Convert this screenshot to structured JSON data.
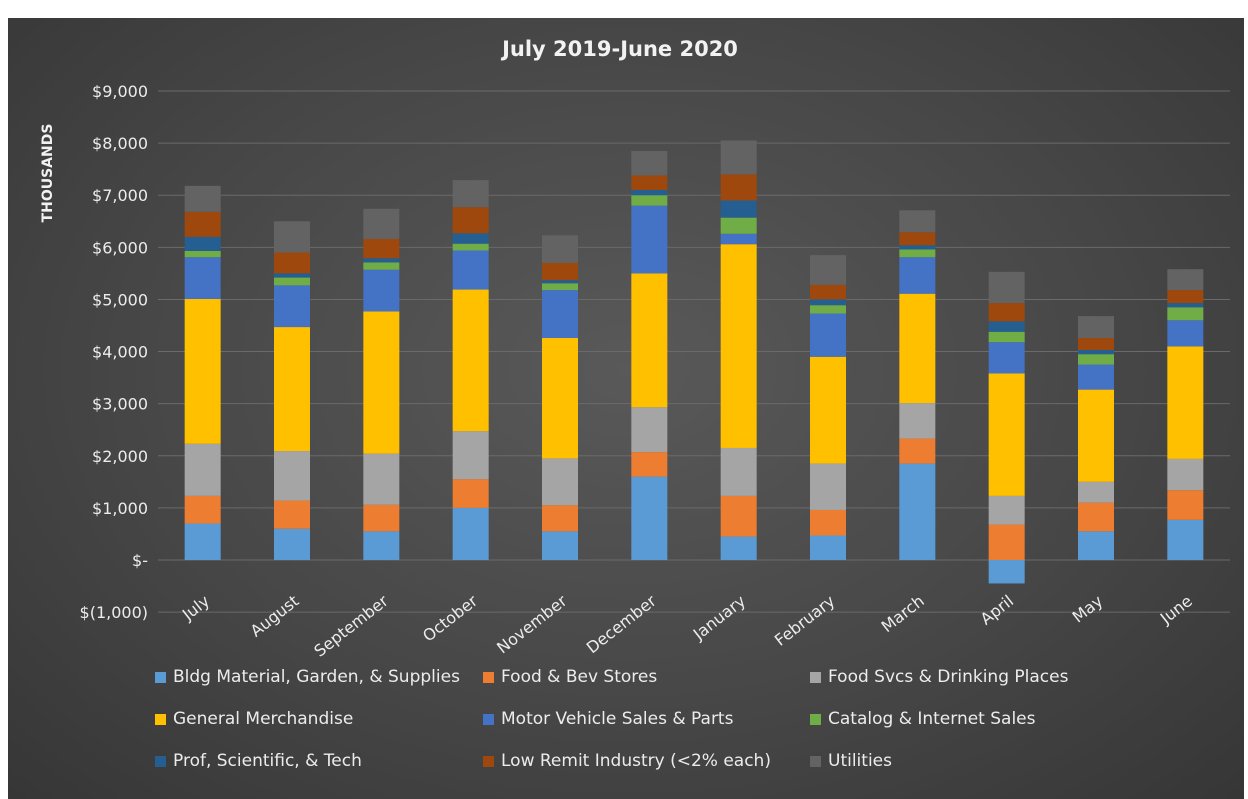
{
  "chart_data": {
    "type": "bar",
    "stacked": true,
    "title": "July 2019-June 2020",
    "ylabel": "THOUSANDS",
    "xlabel": "",
    "ylim": [
      -1000,
      9000
    ],
    "yticks": [
      -1000,
      0,
      1000,
      2000,
      3000,
      4000,
      5000,
      6000,
      7000,
      8000,
      9000
    ],
    "ytick_labels": [
      "$(1,000)",
      "$-",
      "$1,000",
      "$2,000",
      "$3,000",
      "$4,000",
      "$5,000",
      "$6,000",
      "$7,000",
      "$8,000",
      "$9,000"
    ],
    "grid": true,
    "legend_position": "bottom",
    "categories": [
      "July",
      "August",
      "September",
      "October",
      "November",
      "December",
      "January",
      "February",
      "March",
      "April",
      "May",
      "June"
    ],
    "series": [
      {
        "name": "Bldg Material, Garden, & Supplies",
        "color": "#5b9bd5",
        "values": [
          700,
          600,
          550,
          1000,
          550,
          1600,
          450,
          470,
          1850,
          -450,
          550,
          770
        ]
      },
      {
        "name": "Food & Bev Stores",
        "color": "#ed7d31",
        "values": [
          530,
          540,
          510,
          550,
          500,
          470,
          780,
          490,
          480,
          680,
          550,
          570
        ]
      },
      {
        "name": "Food Svcs & Drinking Places",
        "color": "#a5a5a5",
        "values": [
          1000,
          950,
          980,
          920,
          900,
          860,
          920,
          890,
          680,
          550,
          400,
          600
        ]
      },
      {
        "name": "General Merchandise",
        "color": "#ffc000",
        "values": [
          2780,
          2380,
          2730,
          2720,
          2310,
          2570,
          3910,
          2050,
          2100,
          2350,
          1770,
          2160
        ]
      },
      {
        "name": "Motor Vehicle Sales & Parts",
        "color": "#4472c4",
        "values": [
          800,
          800,
          800,
          750,
          920,
          1300,
          200,
          830,
          700,
          600,
          480,
          500
        ]
      },
      {
        "name": "Catalog & Internet Sales",
        "color": "#70ad47",
        "values": [
          120,
          150,
          140,
          130,
          130,
          200,
          310,
          160,
          150,
          200,
          200,
          250
        ]
      },
      {
        "name": "Prof, Scientific, & Tech",
        "color": "#255e91",
        "values": [
          270,
          80,
          80,
          200,
          60,
          100,
          330,
          110,
          80,
          200,
          80,
          80
        ]
      },
      {
        "name": "Low Remit Industry (<2% each)",
        "color": "#9e480e",
        "values": [
          480,
          400,
          370,
          500,
          330,
          280,
          500,
          280,
          250,
          350,
          230,
          250
        ]
      },
      {
        "name": "Utilities",
        "color": "#636363",
        "values": [
          500,
          600,
          580,
          520,
          530,
          470,
          650,
          570,
          420,
          600,
          420,
          400
        ]
      }
    ]
  }
}
